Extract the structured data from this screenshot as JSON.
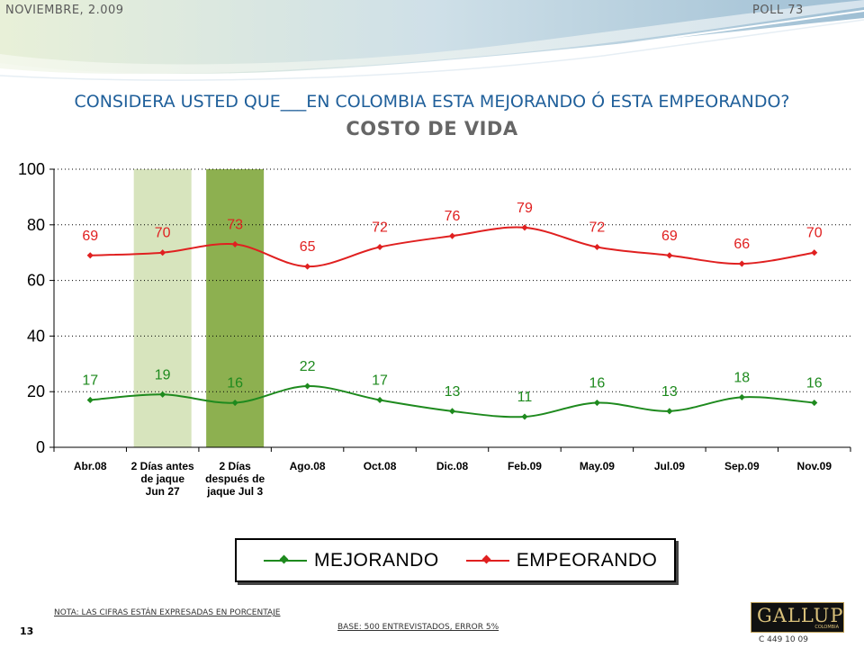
{
  "header": {
    "date": "NOVIEMBRE, 2.009",
    "poll": "POLL 73"
  },
  "question": "CONSIDERA USTED QUE___EN COLOMBIA ESTA MEJORANDO Ó ESTA EMPEORANDO?",
  "topic": "COSTO DE VIDA",
  "chart_data": {
    "type": "line",
    "categories": [
      "Abr.08",
      "2 Días antes de jaque Jun 27",
      "2 Días después de jaque Jul 3",
      "Ago.08",
      "Oct.08",
      "Dic.08",
      "Feb.09",
      "May.09",
      "Jul.09",
      "Sep.09",
      "Nov.09"
    ],
    "category_lines": [
      [
        "Abr.08"
      ],
      [
        "2 Días antes",
        "de jaque",
        "Jun 27"
      ],
      [
        "2 Días",
        "después de",
        "jaque Jul 3"
      ],
      [
        "Ago.08"
      ],
      [
        "Oct.08"
      ],
      [
        "Dic.08"
      ],
      [
        "Feb.09"
      ],
      [
        "May.09"
      ],
      [
        "Jul.09"
      ],
      [
        "Sep.09"
      ],
      [
        "Nov.09"
      ]
    ],
    "series": [
      {
        "name": "MEJORANDO",
        "color": "#1e8a1e",
        "values": [
          17,
          19,
          16,
          22,
          17,
          13,
          11,
          16,
          13,
          18,
          16
        ]
      },
      {
        "name": "EMPEORANDO",
        "color": "#e02020",
        "values": [
          69,
          70,
          73,
          65,
          72,
          76,
          79,
          72,
          69,
          66,
          70
        ]
      }
    ],
    "highlight_columns": [
      {
        "category_index": 1,
        "color": "#d7e4bd"
      },
      {
        "category_index": 2,
        "color": "#8db050"
      }
    ],
    "ylim": [
      0,
      100
    ],
    "yticks": [
      0,
      20,
      40,
      60,
      80,
      100
    ],
    "grid": "dotted horizontal",
    "legend_position": "bottom"
  },
  "legend": {
    "items": [
      {
        "label": "MEJORANDO",
        "color": "#1e8a1e"
      },
      {
        "label": "EMPEORANDO",
        "color": "#e02020"
      }
    ]
  },
  "footer": {
    "note": "NOTA: LAS CIFRAS ESTÁN EXPRESADAS EN PORCENTAJE",
    "page": "13",
    "base": "BASE: 500 ENTREVISTADOS, ERROR 5%",
    "logo_name": "GALLUP",
    "logo_sub": "COLOMBIA",
    "code": "C 449 10 09"
  }
}
